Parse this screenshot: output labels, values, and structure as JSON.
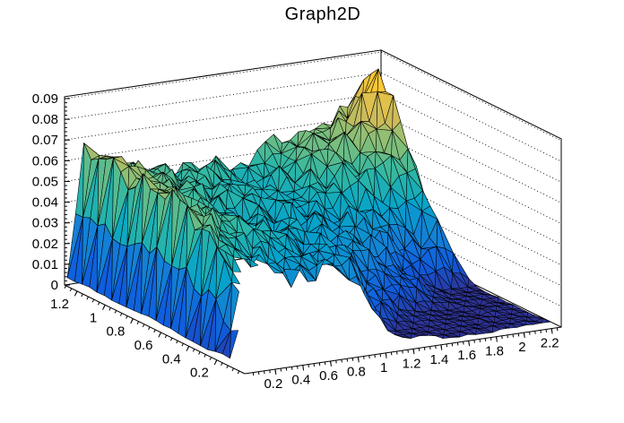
{
  "title": "Graph2D",
  "colors": {
    "background": "#ffffff",
    "axis_line": "#000000",
    "mesh_line": "#000000",
    "wall_fill": "#ffffff",
    "grid_dot": "#000000",
    "text": "#000000"
  },
  "chart_data": {
    "type": "surface",
    "title": "Graph2D",
    "legend": "none",
    "grid": "dotted z-gridlines on back walls",
    "view": "ROOT default 3D view, box frame with two back walls",
    "x_range": [
      -0.02,
      2.27
    ],
    "y_range": [
      0.0,
      1.29
    ],
    "z_range": [
      0.0,
      0.0909
    ],
    "color_zmax": 0.095,
    "x_ticks": [
      0.2,
      0.4,
      0.6,
      0.8,
      1.0,
      1.2,
      1.4,
      1.6,
      1.8,
      2.0,
      2.2
    ],
    "x_tick_labels": [
      "0.2",
      "0.4",
      "0.6",
      "0.8",
      "1",
      "1.2",
      "1.4",
      "1.6",
      "1.8",
      "2",
      "2.2"
    ],
    "y_ticks": [
      0.2,
      0.4,
      0.6,
      0.8,
      1.0,
      1.2
    ],
    "y_tick_labels": [
      "0.2",
      "0.4",
      "0.6",
      "0.8",
      "1",
      "1.2"
    ],
    "z_ticks": [
      0,
      0.01,
      0.02,
      0.03,
      0.04,
      0.05,
      0.06,
      0.07,
      0.08,
      0.09
    ],
    "z_tick_labels": [
      "0",
      "0.01",
      "0.02",
      "0.03",
      "0.04",
      "0.05",
      "0.06",
      "0.07",
      "0.08",
      "0.09"
    ],
    "minor_tick_step": {
      "x": 0.04,
      "y": 0.04,
      "z": 0.002
    },
    "palette_kbird": {
      "s": [
        0,
        0.125,
        0.25,
        0.375,
        0.5,
        0.625,
        0.75,
        0.875,
        1
      ],
      "r": [
        0.2082,
        0.0592,
        0.078,
        0.0232,
        0.1802,
        0.5301,
        0.8186,
        0.9956,
        0.9764
      ],
      "g": [
        0.1664,
        0.3599,
        0.5041,
        0.6419,
        0.7178,
        0.7492,
        0.7328,
        0.7862,
        0.9832
      ],
      "b": [
        0.5293,
        0.8684,
        0.8385,
        0.7914,
        0.6425,
        0.4662,
        0.3499,
        0.1968,
        0.0539
      ]
    },
    "surface_control_grid": {
      "x": [
        0,
        0.12,
        0.3,
        0.5,
        0.7,
        0.9,
        1.0,
        1.2,
        1.4,
        1.6,
        1.8,
        1.95,
        2.1,
        2.21
      ],
      "y": [
        0.02,
        0.2,
        0.35,
        0.55,
        0.75,
        0.95,
        1.12,
        1.29
      ],
      "z": [
        [
          0.003,
          0.028,
          0.018,
          0.014,
          0.014,
          0.014,
          0.008,
          0.002,
          0.002,
          0.002,
          0.002,
          0.002,
          0.002,
          0.002
        ],
        [
          0.003,
          0.032,
          0.03,
          0.024,
          0.02,
          0.026,
          0.03,
          0.003,
          0.002,
          0.002,
          0.002,
          0.002,
          0.002,
          0.002
        ],
        [
          0.002,
          0.05,
          0.04,
          0.034,
          0.028,
          0.032,
          0.034,
          0.02,
          0.007,
          0.003,
          0.002,
          0.002,
          0.002,
          0.002
        ],
        [
          0.003,
          0.061,
          0.052,
          0.044,
          0.04,
          0.035,
          0.034,
          0.03,
          0.026,
          0.018,
          0.008,
          0.003,
          0.002,
          0.002
        ],
        [
          0.004,
          0.063,
          0.055,
          0.048,
          0.042,
          0.038,
          0.036,
          0.035,
          0.033,
          0.03,
          0.026,
          0.024,
          0.034,
          0.01
        ],
        [
          0.003,
          0.06,
          0.057,
          0.05,
          0.045,
          0.042,
          0.04,
          0.038,
          0.04,
          0.044,
          0.05,
          0.054,
          0.064,
          0.028
        ],
        [
          0.004,
          0.066,
          0.06,
          0.054,
          0.05,
          0.048,
          0.045,
          0.04,
          0.044,
          0.054,
          0.06,
          0.07,
          0.091,
          0.04
        ],
        [
          0.003,
          0.064,
          0.056,
          0.05,
          0.048,
          0.05,
          0.049,
          0.045,
          0.05,
          0.058,
          0.056,
          0.064,
          0.073,
          0.035
        ]
      ],
      "mask_below_y": [
        0.02,
        0.16,
        0.3,
        0.33,
        0.29,
        0.31,
        0.3,
        0.06,
        0.02,
        0.02,
        0.02,
        0.02,
        0.02,
        0.02
      ],
      "mask_x_above": 2.21
    },
    "render_grid": {
      "nx": 38,
      "ny": 25,
      "noise_seed": 11,
      "noise_amp": 0.0085,
      "floor_noise_amp": 0.0012,
      "ripple_amp": 0.0028,
      "edge_wiggle": 0.05
    }
  }
}
